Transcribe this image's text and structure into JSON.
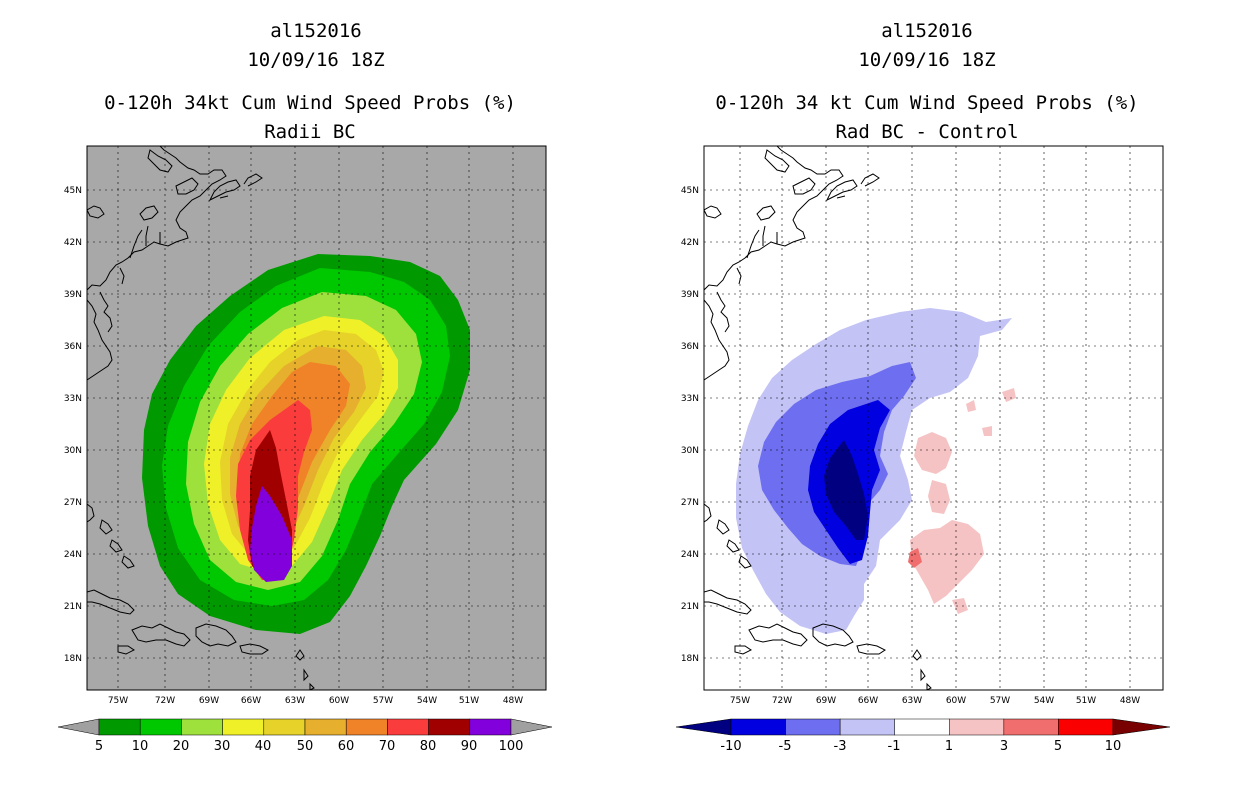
{
  "left": {
    "storm_id": "al152016",
    "datetime": "10/09/16 18Z",
    "product": "0-120h 34kt Cum Wind Speed Probs (%)",
    "subtitle": "Radii BC",
    "lat_labels": [
      "45N",
      "42N",
      "39N",
      "36N",
      "33N",
      "30N",
      "27N",
      "24N",
      "21N",
      "18N"
    ],
    "lon_labels": [
      "75W",
      "72W",
      "69W",
      "66W",
      "63W",
      "60W",
      "57W",
      "54W",
      "51W",
      "48W"
    ],
    "colorbar": {
      "labels": [
        "5",
        "10",
        "20",
        "30",
        "40",
        "50",
        "60",
        "70",
        "80",
        "90",
        "100"
      ],
      "colors": [
        "#009a00",
        "#00c800",
        "#9ee03c",
        "#f0f028",
        "#e6d228",
        "#e6af2d",
        "#f08228",
        "#fa3c3c",
        "#a00000",
        "#8200dc"
      ],
      "end_color": "#a0a0a0"
    },
    "background": "#a8a8a8"
  },
  "right": {
    "storm_id": "al152016",
    "datetime": "10/09/16 18Z",
    "product": "0-120h 34 kt Cum Wind Speed Probs (%)",
    "subtitle": "Rad BC - Control",
    "lat_labels": [
      "45N",
      "42N",
      "39N",
      "36N",
      "33N",
      "30N",
      "27N",
      "24N",
      "21N",
      "18N"
    ],
    "lon_labels": [
      "75W",
      "72W",
      "69W",
      "66W",
      "63W",
      "60W",
      "57W",
      "54W",
      "51W",
      "48W"
    ],
    "colorbar": {
      "labels": [
        "-10",
        "-5",
        "-3",
        "-1",
        "1",
        "3",
        "5",
        "10"
      ],
      "colors": [
        "#0000e0",
        "#6e6ef0",
        "#c3c3f5",
        "#ffffff",
        "#f5c3c3",
        "#f06e6e",
        "#fa0000"
      ],
      "low_end_color": "#000080",
      "high_end_color": "#780000"
    }
  }
}
